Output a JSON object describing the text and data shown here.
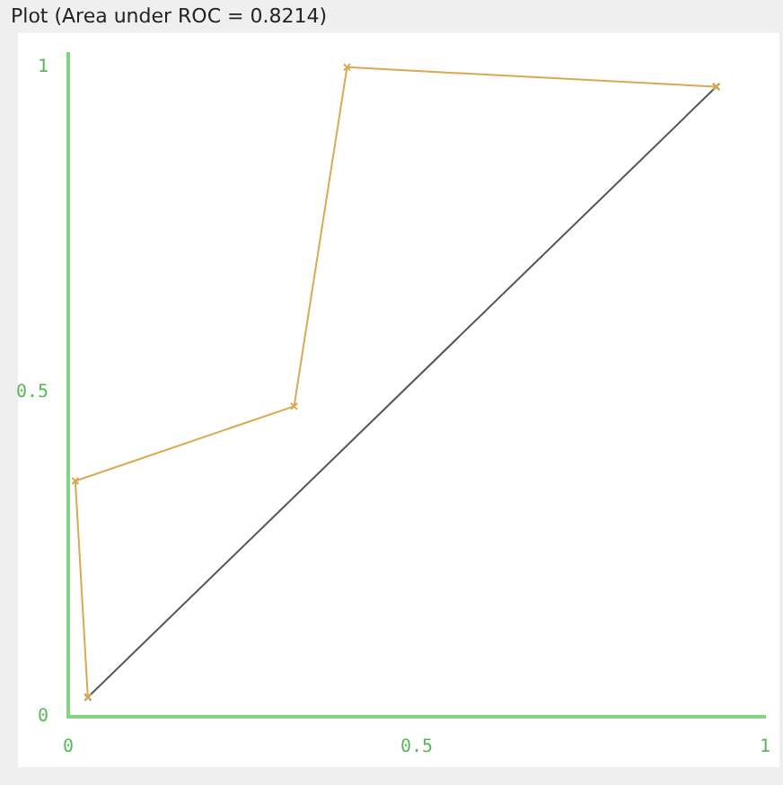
{
  "chart_data": {
    "type": "line",
    "title": "Plot (Area under ROC = 0.8214)",
    "xlim": [
      0,
      1
    ],
    "ylim": [
      0,
      1.02
    ],
    "xticks": [
      0,
      0.5,
      1
    ],
    "yticks": [
      0,
      0.5,
      1
    ],
    "grid": false,
    "legend": false,
    "marker": "cross",
    "series": [
      {
        "color": "#d9a94f",
        "x": [
          0.028,
          0.01,
          0.324,
          0.4,
          0.93
        ],
        "values": [
          0.03,
          0.363,
          0.478,
          1.0,
          0.97
        ]
      },
      {
        "color": "#555555",
        "x": [
          0.028,
          0.93
        ],
        "values": [
          0.03,
          0.97
        ]
      }
    ]
  }
}
